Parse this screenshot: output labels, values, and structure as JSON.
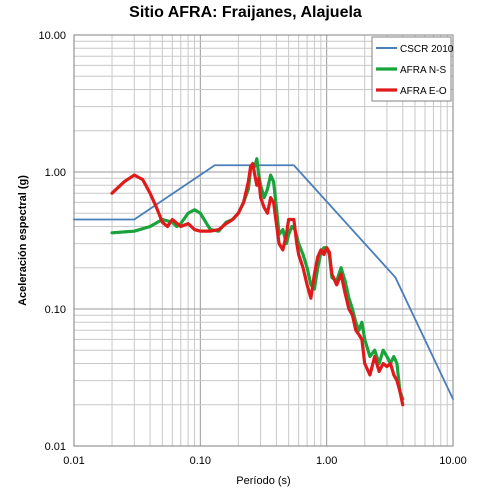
{
  "chart_data": {
    "type": "line",
    "title": "Sitio AFRA: Fraijanes, Alajuela",
    "xlabel": "Período (s)",
    "ylabel": "Aceleración espectral (g)",
    "x_scale": "log",
    "y_scale": "log",
    "xlim": [
      0.01,
      10.0
    ],
    "ylim": [
      0.01,
      10.0
    ],
    "grid": true,
    "legend_position": "top-right",
    "x_ticks": [
      "0.01",
      "0.10",
      "1.00",
      "10.00"
    ],
    "y_ticks": [
      "10.00",
      "1.00",
      "0.10",
      "0.01"
    ],
    "series": [
      {
        "name": "CSCR 2010",
        "color": "#4a7ebb",
        "x": [
          0.01,
          0.03,
          0.13,
          0.55,
          3.5,
          10.0
        ],
        "y": [
          0.45,
          0.45,
          1.12,
          1.12,
          0.17,
          0.022
        ]
      },
      {
        "name": "AFRA N-S",
        "color": "#1aa33a",
        "x": [
          0.02,
          0.03,
          0.04,
          0.05,
          0.06,
          0.065,
          0.07,
          0.08,
          0.09,
          0.1,
          0.12,
          0.14,
          0.16,
          0.18,
          0.2,
          0.22,
          0.24,
          0.25,
          0.26,
          0.27,
          0.28,
          0.29,
          0.3,
          0.32,
          0.34,
          0.36,
          0.38,
          0.4,
          0.42,
          0.45,
          0.48,
          0.5,
          0.53,
          0.56,
          0.6,
          0.65,
          0.7,
          0.75,
          0.8,
          0.85,
          0.9,
          0.95,
          1.0,
          1.05,
          1.1,
          1.2,
          1.3,
          1.4,
          1.5,
          1.6,
          1.7,
          1.8,
          1.9,
          2.0,
          2.2,
          2.4,
          2.6,
          2.8,
          3.0,
          3.2,
          3.4,
          3.6,
          3.8,
          4.0
        ],
        "y": [
          0.36,
          0.37,
          0.4,
          0.45,
          0.43,
          0.4,
          0.42,
          0.5,
          0.53,
          0.5,
          0.38,
          0.37,
          0.43,
          0.45,
          0.5,
          0.6,
          0.75,
          1.05,
          1.15,
          1.1,
          1.25,
          0.95,
          0.8,
          0.65,
          0.75,
          0.95,
          0.85,
          0.55,
          0.35,
          0.38,
          0.3,
          0.35,
          0.4,
          0.38,
          0.3,
          0.25,
          0.2,
          0.15,
          0.14,
          0.2,
          0.26,
          0.28,
          0.28,
          0.25,
          0.17,
          0.16,
          0.2,
          0.16,
          0.12,
          0.1,
          0.08,
          0.07,
          0.08,
          0.06,
          0.045,
          0.05,
          0.04,
          0.05,
          0.045,
          0.04,
          0.045,
          0.04,
          0.025,
          0.022
        ]
      },
      {
        "name": "AFRA E-O",
        "color": "#e01a1a",
        "x": [
          0.02,
          0.025,
          0.03,
          0.035,
          0.04,
          0.045,
          0.05,
          0.055,
          0.06,
          0.07,
          0.08,
          0.09,
          0.1,
          0.12,
          0.14,
          0.16,
          0.18,
          0.2,
          0.22,
          0.24,
          0.25,
          0.26,
          0.27,
          0.28,
          0.29,
          0.3,
          0.32,
          0.34,
          0.36,
          0.38,
          0.4,
          0.42,
          0.45,
          0.48,
          0.5,
          0.55,
          0.58,
          0.6,
          0.65,
          0.7,
          0.75,
          0.8,
          0.85,
          0.9,
          0.95,
          1.0,
          1.05,
          1.1,
          1.2,
          1.3,
          1.4,
          1.5,
          1.6,
          1.7,
          1.8,
          1.9,
          2.0,
          2.2,
          2.4,
          2.6,
          2.8,
          3.0,
          3.2,
          3.4,
          3.6,
          3.8,
          4.0
        ],
        "y": [
          0.7,
          0.85,
          0.95,
          0.88,
          0.7,
          0.55,
          0.43,
          0.4,
          0.45,
          0.4,
          0.42,
          0.38,
          0.37,
          0.37,
          0.38,
          0.42,
          0.45,
          0.5,
          0.6,
          0.85,
          1.1,
          1.15,
          0.95,
          0.8,
          0.9,
          0.65,
          0.55,
          0.5,
          0.65,
          0.6,
          0.42,
          0.3,
          0.27,
          0.35,
          0.45,
          0.45,
          0.3,
          0.25,
          0.2,
          0.15,
          0.12,
          0.18,
          0.24,
          0.27,
          0.25,
          0.28,
          0.26,
          0.18,
          0.15,
          0.18,
          0.13,
          0.1,
          0.09,
          0.07,
          0.065,
          0.06,
          0.04,
          0.033,
          0.045,
          0.035,
          0.04,
          0.038,
          0.04,
          0.033,
          0.03,
          0.025,
          0.02
        ]
      }
    ]
  }
}
